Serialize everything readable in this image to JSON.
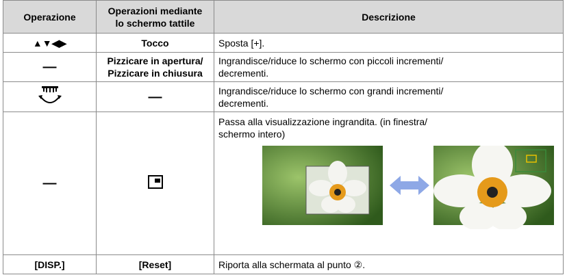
{
  "table": {
    "headers": {
      "operation": "Operazione",
      "touch": [
        "Operazioni mediante",
        "lo schermo tattile"
      ],
      "description": "Descrizione"
    },
    "rows": [
      {
        "operation": "▲▼◀▶",
        "touch": [
          "Tocco"
        ],
        "description": [
          "Sposta [+]."
        ]
      },
      {
        "operation": "—",
        "touch": [
          "Pizzicare in apertura/",
          "Pizzicare in chiusura"
        ],
        "description": [
          "Ingrandisce/riduce lo schermo con piccoli incrementi/",
          "decrementi."
        ]
      },
      {
        "touch": [
          "—"
        ],
        "description": [
          "Ingrandisce/riduce lo schermo con grandi incrementi/",
          "decrementi."
        ]
      },
      {
        "operation": "—",
        "description": [
          "Passa alla visualizzazione ingrandita. (in finestra/",
          "schermo intero)"
        ]
      },
      {
        "operation": "[DISP.]",
        "touch": [
          "[Reset]"
        ],
        "description": [
          "Riporta alla schermata al punto ②."
        ]
      }
    ]
  }
}
